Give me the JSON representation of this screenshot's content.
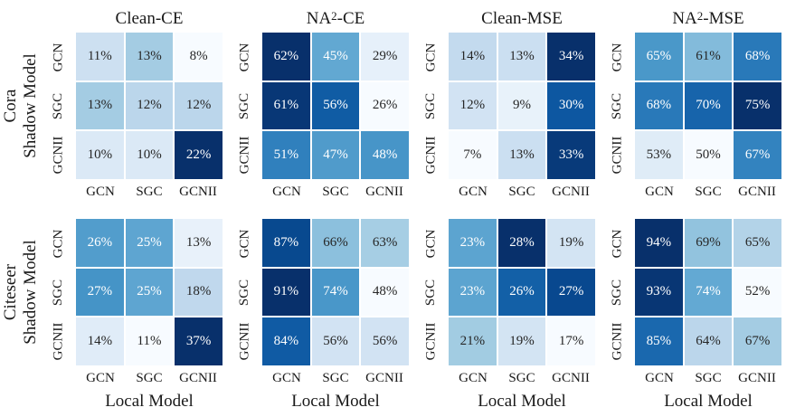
{
  "colors": {
    "background": "#ffffff",
    "gridline": "#ffffff",
    "tick_text": "#1a1a1a",
    "annotation_dark": "#262626",
    "annotation_light": "#ffffff",
    "cmap_stops": [
      "#f7fbff",
      "#deebf7",
      "#c6dbef",
      "#9ecae1",
      "#6baed6",
      "#4292c6",
      "#2171b5",
      "#08519c",
      "#08306b"
    ]
  },
  "chart_data": {
    "type": "heatmap",
    "colormap": "Blues",
    "normalization": "per-heatmap min-max",
    "grid_layout": {
      "rows": 2,
      "cols": 4
    },
    "value_suffix": "%",
    "x_ticklabels": [
      "GCN",
      "SGC",
      "GCNII"
    ],
    "y_ticklabels": [
      "GCN",
      "SGC",
      "GCNII"
    ],
    "xlabel": "Local Model",
    "rows": [
      {
        "dataset": "Cora",
        "axis": "Shadow Model"
      },
      {
        "dataset": "Citeseer",
        "axis": "Shadow Model"
      }
    ],
    "col_titles_text": [
      "Clean-CE",
      "NA²-CE",
      "Clean-MSE",
      "NA²-MSE"
    ],
    "col_titles": [
      [
        {
          "t": "Clean-CE"
        }
      ],
      [
        {
          "t": "NA"
        },
        {
          "t": "2",
          "sup": true
        },
        {
          "t": "-CE"
        }
      ],
      [
        {
          "t": "Clean-MSE"
        }
      ],
      [
        {
          "t": "NA"
        },
        {
          "t": "2",
          "sup": true
        },
        {
          "t": "-MSE"
        }
      ]
    ],
    "heatmaps": [
      {
        "row": 0,
        "col": 0,
        "row_label": "Cora",
        "col_title": "Clean-CE",
        "values": [
          [
            11,
            13,
            8
          ],
          [
            13,
            12,
            12
          ],
          [
            10,
            10,
            22
          ]
        ]
      },
      {
        "row": 0,
        "col": 1,
        "row_label": "Cora",
        "col_title": "NA²-CE",
        "values": [
          [
            62,
            45,
            29
          ],
          [
            61,
            56,
            26
          ],
          [
            51,
            47,
            48
          ]
        ]
      },
      {
        "row": 0,
        "col": 2,
        "row_label": "Cora",
        "col_title": "Clean-MSE",
        "values": [
          [
            14,
            13,
            34
          ],
          [
            12,
            9,
            30
          ],
          [
            7,
            13,
            33
          ]
        ]
      },
      {
        "row": 0,
        "col": 3,
        "row_label": "Cora",
        "col_title": "NA²-MSE",
        "values": [
          [
            65,
            61,
            68
          ],
          [
            68,
            70,
            75
          ],
          [
            53,
            50,
            67
          ]
        ]
      },
      {
        "row": 1,
        "col": 0,
        "row_label": "Citeseer",
        "col_title": "Clean-CE",
        "values": [
          [
            26,
            25,
            13
          ],
          [
            27,
            25,
            18
          ],
          [
            14,
            11,
            37
          ]
        ]
      },
      {
        "row": 1,
        "col": 1,
        "row_label": "Citeseer",
        "col_title": "NA²-CE",
        "values": [
          [
            87,
            66,
            63
          ],
          [
            91,
            74,
            48
          ],
          [
            84,
            56,
            56
          ]
        ]
      },
      {
        "row": 1,
        "col": 2,
        "row_label": "Citeseer",
        "col_title": "Clean-MSE",
        "values": [
          [
            23,
            28,
            19
          ],
          [
            23,
            26,
            27
          ],
          [
            21,
            19,
            17
          ]
        ]
      },
      {
        "row": 1,
        "col": 3,
        "row_label": "Citeseer",
        "col_title": "NA²-MSE",
        "values": [
          [
            94,
            69,
            65
          ],
          [
            93,
            74,
            52
          ],
          [
            85,
            64,
            67
          ]
        ]
      }
    ]
  }
}
